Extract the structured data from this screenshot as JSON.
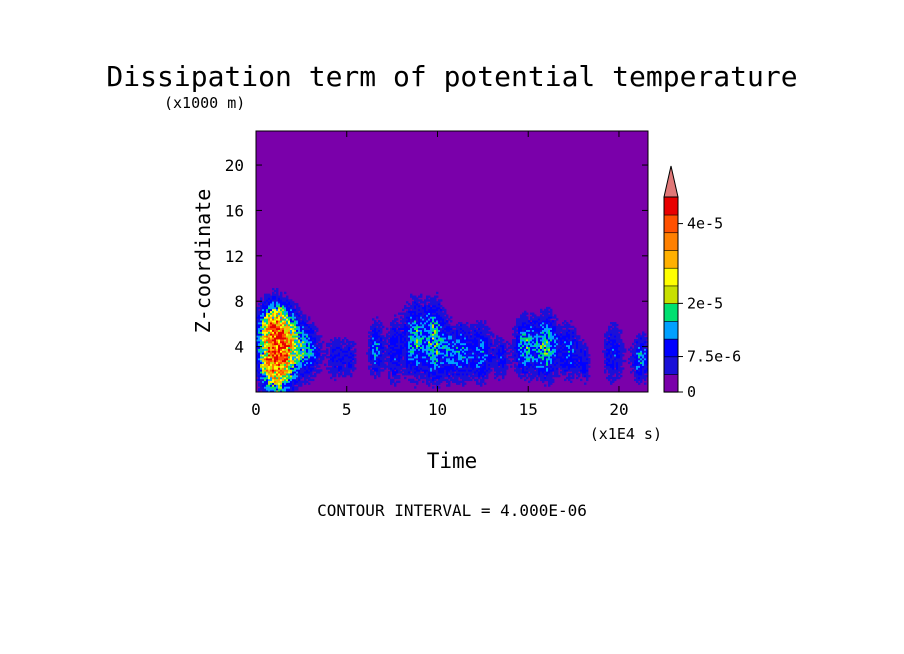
{
  "chart_data": {
    "type": "heatmap",
    "title": "Dissipation term of potential temperature",
    "xlabel": "Time",
    "ylabel": "Z-coordinate",
    "x_unit": "(x1E4 s)",
    "y_unit": "(x1000 m)",
    "xlim": [
      0,
      21.6
    ],
    "ylim": [
      0,
      23
    ],
    "x_ticks": [
      0,
      5,
      10,
      15,
      20
    ],
    "y_ticks": [
      4,
      8,
      12,
      16,
      20
    ],
    "x_tick_labels": [
      "0",
      "5",
      "10",
      "15",
      "20"
    ],
    "y_tick_labels": [
      "4",
      "8",
      "12",
      "16",
      "20"
    ],
    "background_color": "#7a00aa",
    "colorbar": {
      "levels": [
        0,
        4e-06,
        7.5e-06,
        1.2e-05,
        1.6e-05,
        2e-05,
        2.4e-05,
        2.8e-05,
        3.2e-05,
        3.6e-05,
        4.4e-05
      ],
      "colors": [
        "#7a00aa",
        "#1a10d8",
        "#0000ff",
        "#00a0ff",
        "#00e070",
        "#c8e000",
        "#ffff00",
        "#ffb000",
        "#ff8000",
        "#ff5000",
        "#e80000"
      ],
      "over_color": "#e07878",
      "tick_values": [
        0,
        7.5e-06,
        2e-05,
        4e-05
      ],
      "tick_labels": [
        "0",
        "7.5e-6",
        "2e-5",
        "4e-5"
      ]
    },
    "contour_interval_label": "CONTOUR INTERVAL = 4.000E-06",
    "clusters": [
      {
        "t": 1.1,
        "z": 3.2,
        "w": 0.8,
        "h": 3.2,
        "peak": 3.6e-05
      },
      {
        "t": 1.0,
        "z": 5.8,
        "w": 0.9,
        "h": 2.2,
        "peak": 1.6e-05
      },
      {
        "t": 2.0,
        "z": 4.0,
        "w": 0.9,
        "h": 2.5,
        "peak": 1.4e-05
      },
      {
        "t": 3.0,
        "z": 3.5,
        "w": 0.6,
        "h": 2.2,
        "peak": 9e-06
      },
      {
        "t": 4.4,
        "z": 3.0,
        "w": 0.5,
        "h": 2.0,
        "peak": 8e-06
      },
      {
        "t": 5.2,
        "z": 3.0,
        "w": 0.4,
        "h": 1.8,
        "peak": 7e-06
      },
      {
        "t": 6.6,
        "z": 3.8,
        "w": 0.4,
        "h": 2.3,
        "peak": 1.3e-05
      },
      {
        "t": 7.6,
        "z": 3.5,
        "w": 0.4,
        "h": 2.8,
        "peak": 9e-06
      },
      {
        "t": 8.8,
        "z": 4.6,
        "w": 0.7,
        "h": 3.3,
        "peak": 1.5e-05
      },
      {
        "t": 9.9,
        "z": 4.5,
        "w": 0.5,
        "h": 3.3,
        "peak": 1.6e-05
      },
      {
        "t": 10.6,
        "z": 3.5,
        "w": 0.3,
        "h": 2.5,
        "peak": 9e-06
      },
      {
        "t": 11.3,
        "z": 3.5,
        "w": 0.5,
        "h": 2.5,
        "peak": 1.3e-05
      },
      {
        "t": 12.4,
        "z": 3.5,
        "w": 0.6,
        "h": 2.5,
        "peak": 1.2e-05
      },
      {
        "t": 13.5,
        "z": 3.0,
        "w": 0.4,
        "h": 2.0,
        "peak": 8e-06
      },
      {
        "t": 14.8,
        "z": 4.0,
        "w": 0.6,
        "h": 2.5,
        "peak": 1.4e-05
      },
      {
        "t": 16.0,
        "z": 4.0,
        "w": 0.7,
        "h": 2.7,
        "peak": 1.6e-05
      },
      {
        "t": 17.3,
        "z": 3.5,
        "w": 0.5,
        "h": 2.3,
        "peak": 1.1e-05
      },
      {
        "t": 18.1,
        "z": 2.5,
        "w": 0.3,
        "h": 1.8,
        "peak": 8e-06
      },
      {
        "t": 19.7,
        "z": 3.5,
        "w": 0.6,
        "h": 2.7,
        "peak": 9e-06
      },
      {
        "t": 21.2,
        "z": 3.0,
        "w": 0.5,
        "h": 2.0,
        "peak": 1.3e-05
      },
      {
        "t": 0.6,
        "z": 2.3,
        "w": 0.3,
        "h": 0.8,
        "peak": 7e-06
      }
    ]
  }
}
